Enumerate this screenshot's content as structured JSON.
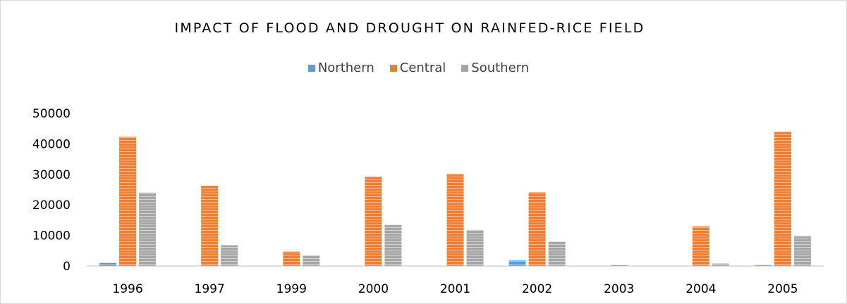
{
  "chart_data": {
    "type": "bar",
    "title": "IMPACT OF FLOOD AND DROUGHT ON RAINFED-RICE FIELD",
    "categories": [
      "1996",
      "1997",
      "1999",
      "2000",
      "2001",
      "2002",
      "2003",
      "2004",
      "2005"
    ],
    "series": [
      {
        "name": "Northern",
        "color": "#5b9bd5",
        "values": [
          1000,
          0,
          0,
          0,
          0,
          1800,
          0,
          0,
          300
        ]
      },
      {
        "name": "Central",
        "color": "#ed7d31",
        "values": [
          42300,
          26300,
          4700,
          29300,
          30200,
          24100,
          300,
          13000,
          44000
        ]
      },
      {
        "name": "Southern",
        "color": "#a5a5a5",
        "values": [
          24000,
          6800,
          3500,
          13500,
          11800,
          8000,
          0,
          800,
          9900
        ]
      }
    ],
    "yticks": [
      "0",
      "10000",
      "20000",
      "30000",
      "40000",
      "50000"
    ],
    "ylim": [
      0,
      50000
    ],
    "grid": false,
    "legend_position": "top"
  }
}
